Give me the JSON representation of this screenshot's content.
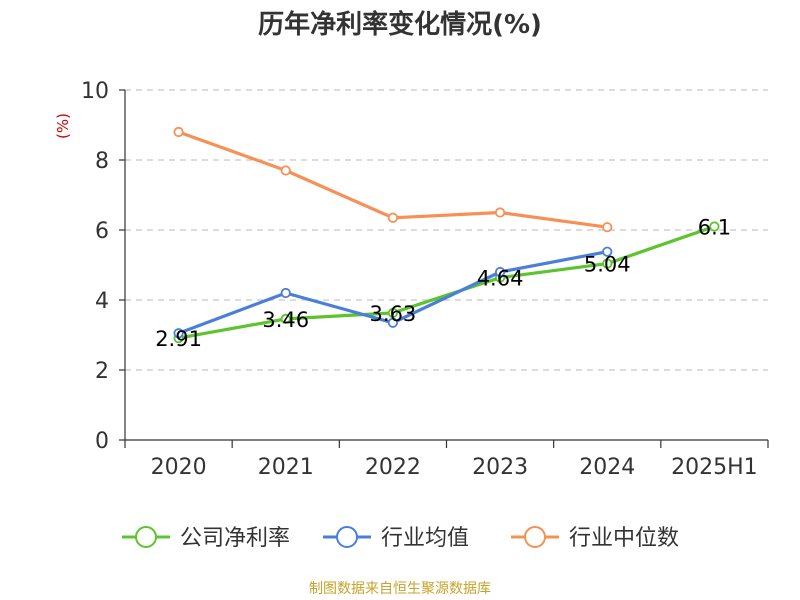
{
  "chart_data": {
    "type": "line",
    "title": "历年净利率变化情况(%)",
    "ylabel": "(%)",
    "categories": [
      "2020",
      "2021",
      "2022",
      "2023",
      "2024",
      "2025H1"
    ],
    "ylim": [
      0,
      10
    ],
    "yticks": [
      0,
      2,
      4,
      6,
      8,
      10
    ],
    "grid": true,
    "legend_position": "bottom",
    "series": [
      {
        "name": "公司净利率",
        "color": "#5cc42c",
        "values": [
          2.91,
          3.46,
          3.63,
          4.64,
          5.04,
          6.1
        ],
        "labels": [
          "2.91",
          "3.46",
          "3.63",
          "4.64",
          "5.04",
          "6.1"
        ]
      },
      {
        "name": "行业均值",
        "color": "#4a7fd9",
        "values": [
          3.05,
          4.2,
          3.35,
          4.8,
          5.38,
          null
        ]
      },
      {
        "name": "行业中位数",
        "color": "#f79055",
        "values": [
          8.8,
          7.7,
          6.35,
          6.5,
          6.08,
          null
        ]
      }
    ]
  },
  "footer": {
    "source": "制图数据来自恒生聚源数据库"
  }
}
